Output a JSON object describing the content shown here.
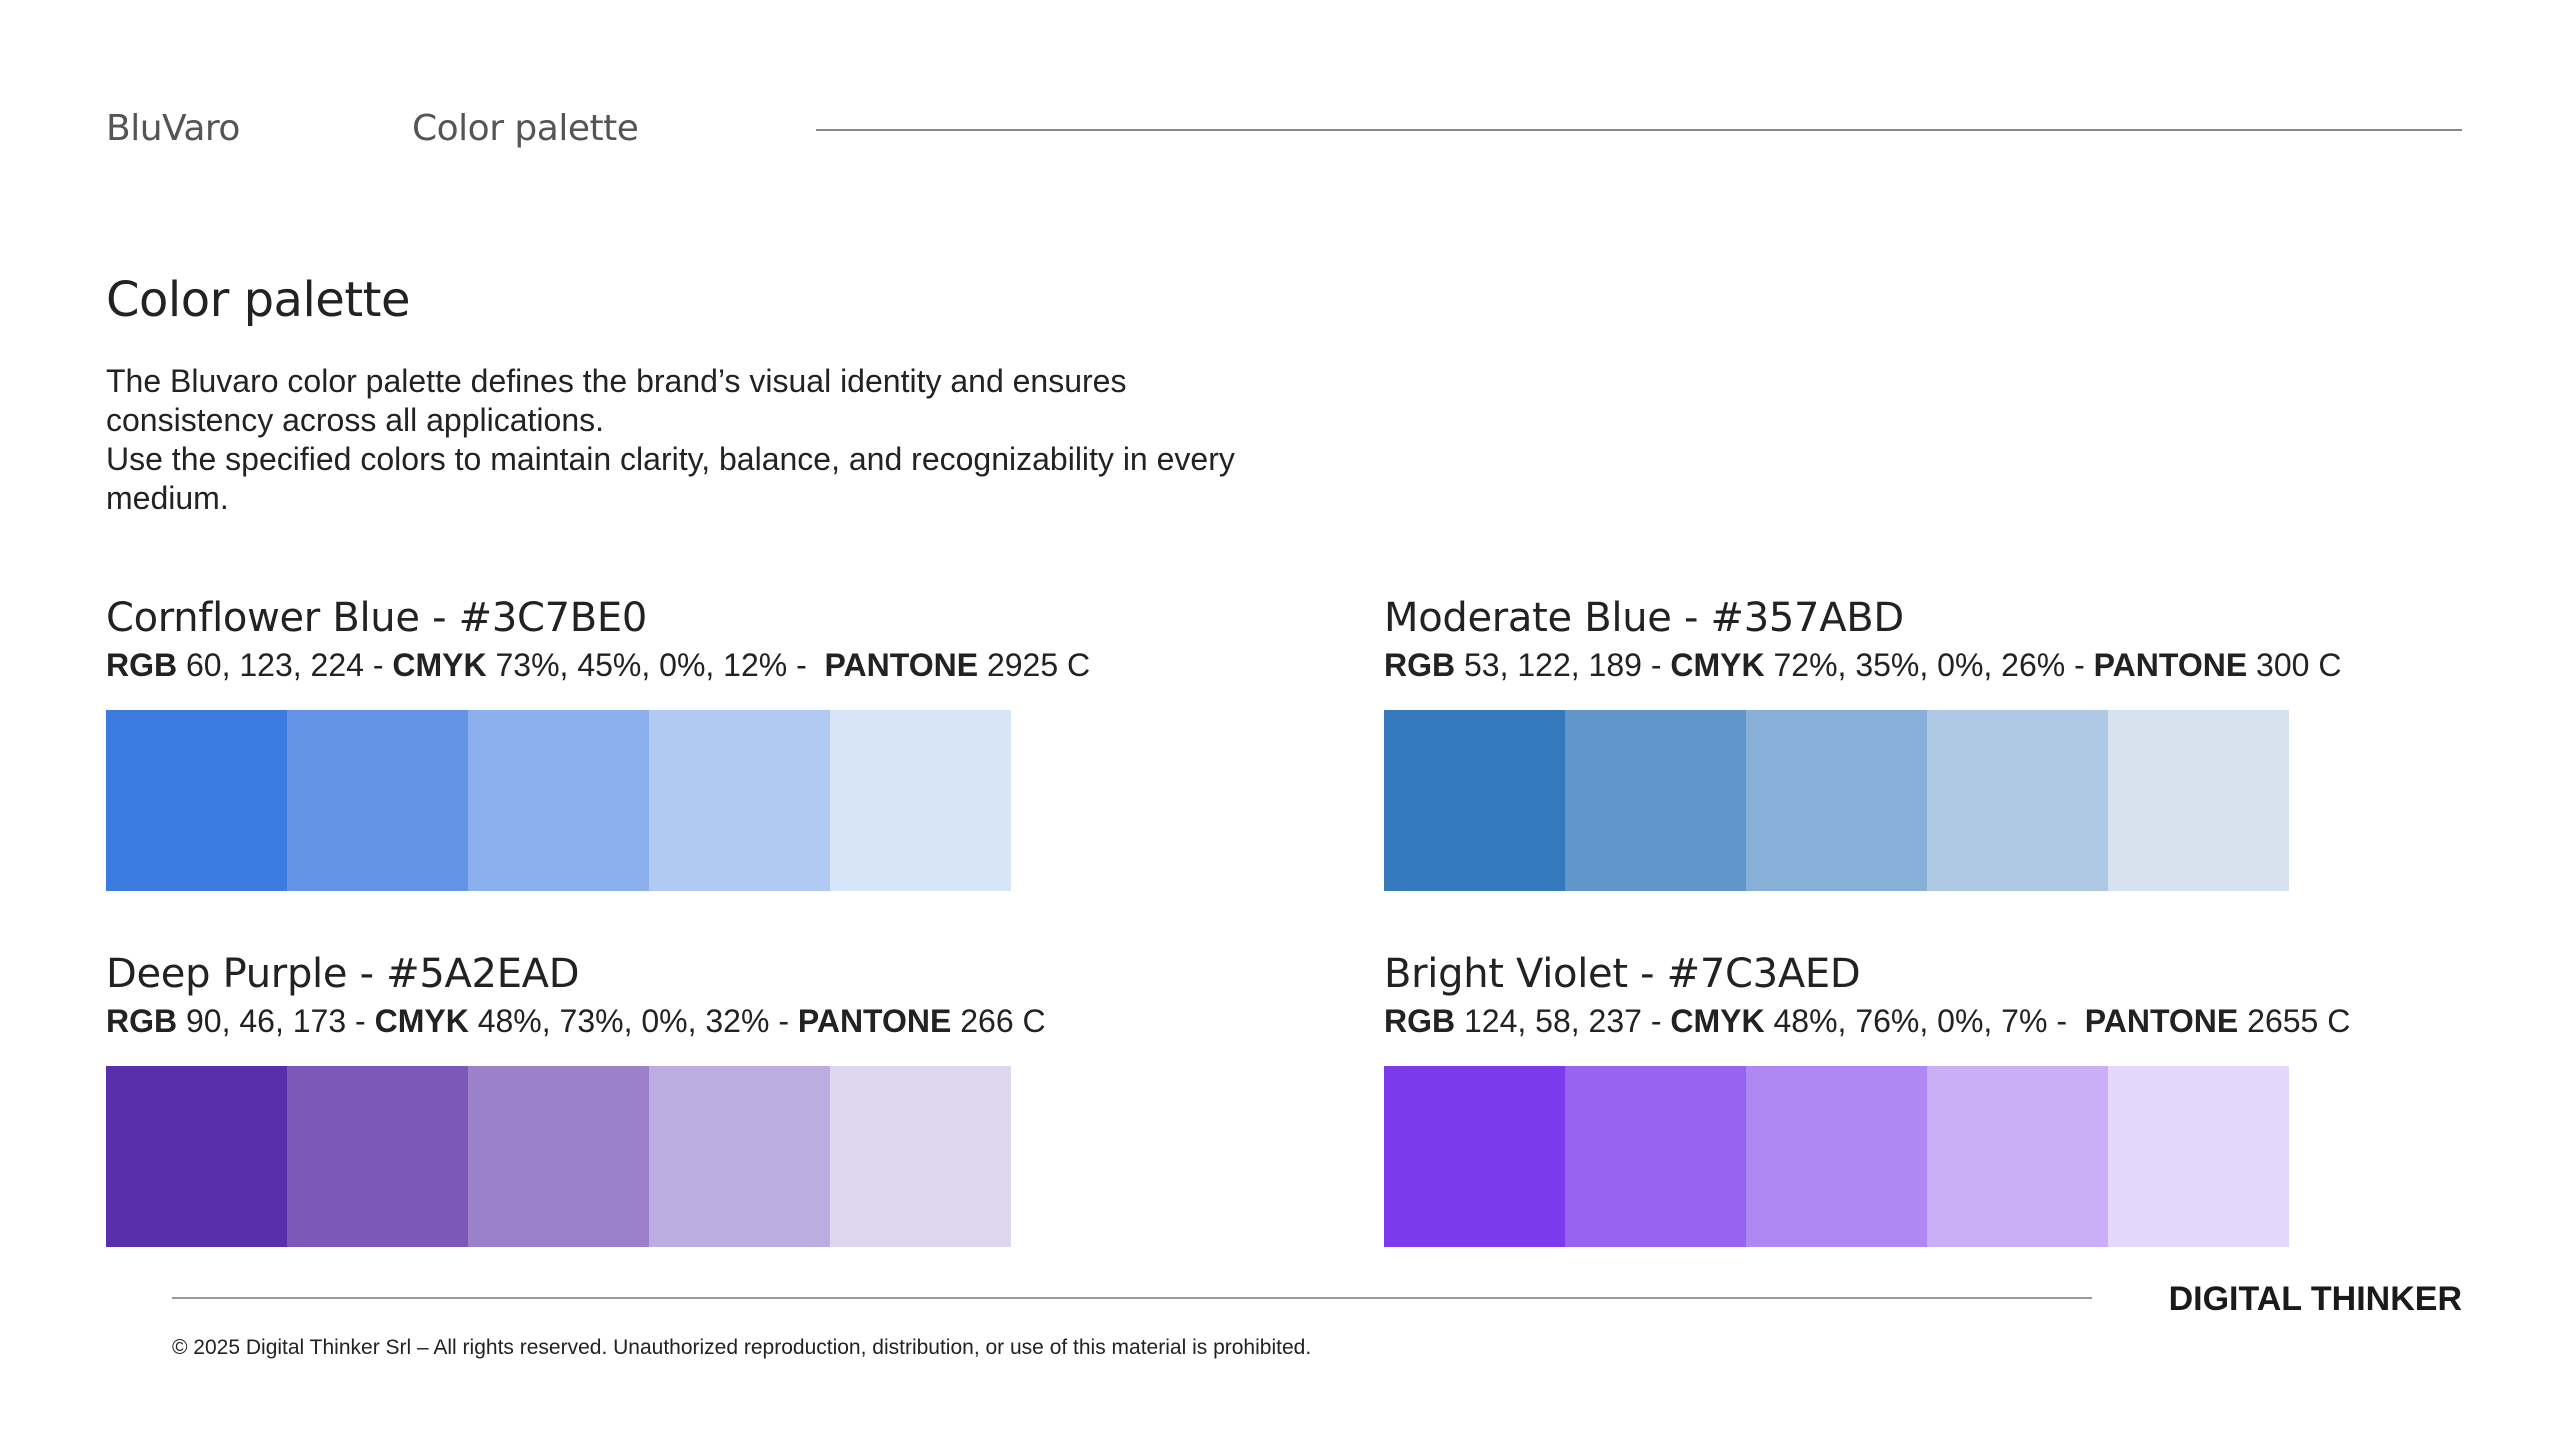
{
  "header": {
    "brand": "BluVaro",
    "section": "Color palette"
  },
  "main": {
    "title": "Color palette",
    "intro": [
      "The Bluvaro color palette defines the brand’s visual identity and ensures consistency across all applications.",
      "Use the specified colors to maintain clarity, balance, and recognizability in every medium."
    ]
  },
  "spec_labels": {
    "rgb": "RGB",
    "cmyk": "CMYK",
    "pantone": "PANTONE",
    "separator": " - "
  },
  "colors": [
    {
      "name": "Cornflower Blue - #3C7BE0",
      "rgb": "60, 123, 224",
      "cmyk": "73%, 45%, 0%, 12%",
      "pantone": "2925 C",
      "swatches": [
        "#3C7BE0",
        "#6394E6",
        "#8BB0ED",
        "#B1CAF3",
        "#D8E4F7"
      ]
    },
    {
      "name": "Moderate Blue - #357ABD",
      "rgb": "53, 122, 189",
      "cmyk": "72%, 35%, 0%, 26%",
      "pantone": "300 C",
      "swatches": [
        "#357ABD",
        "#6196CB",
        "#88AFD7",
        "#AFC9E4",
        "#D6E3EF"
      ]
    },
    {
      "name": "Deep Purple - #5A2EAD",
      "rgb": "90, 46, 173",
      "cmyk": "48%, 73%, 0%, 32%",
      "pantone": "266 C",
      "swatches": [
        "#5A2EAD",
        "#7B58BA",
        "#9B81CA",
        "#BCACDF",
        "#DED5EE"
      ]
    },
    {
      "name": "Bright Violet - #7C3AED",
      "rgb": "124, 58, 237",
      "cmyk": "48%, 76%, 0%, 7%",
      "pantone": "2655 C",
      "swatches": [
        "#7C3AED",
        "#9763F0",
        "#B088F3",
        "#CAAFF6",
        "#E3D7FB"
      ]
    }
  ],
  "footer": {
    "brand": "DIGITAL THINKER",
    "copyright": "© 2025 Digital Thinker Srl – All rights reserved. Unauthorized reproduction, distribution, or use of this material is prohibited."
  }
}
